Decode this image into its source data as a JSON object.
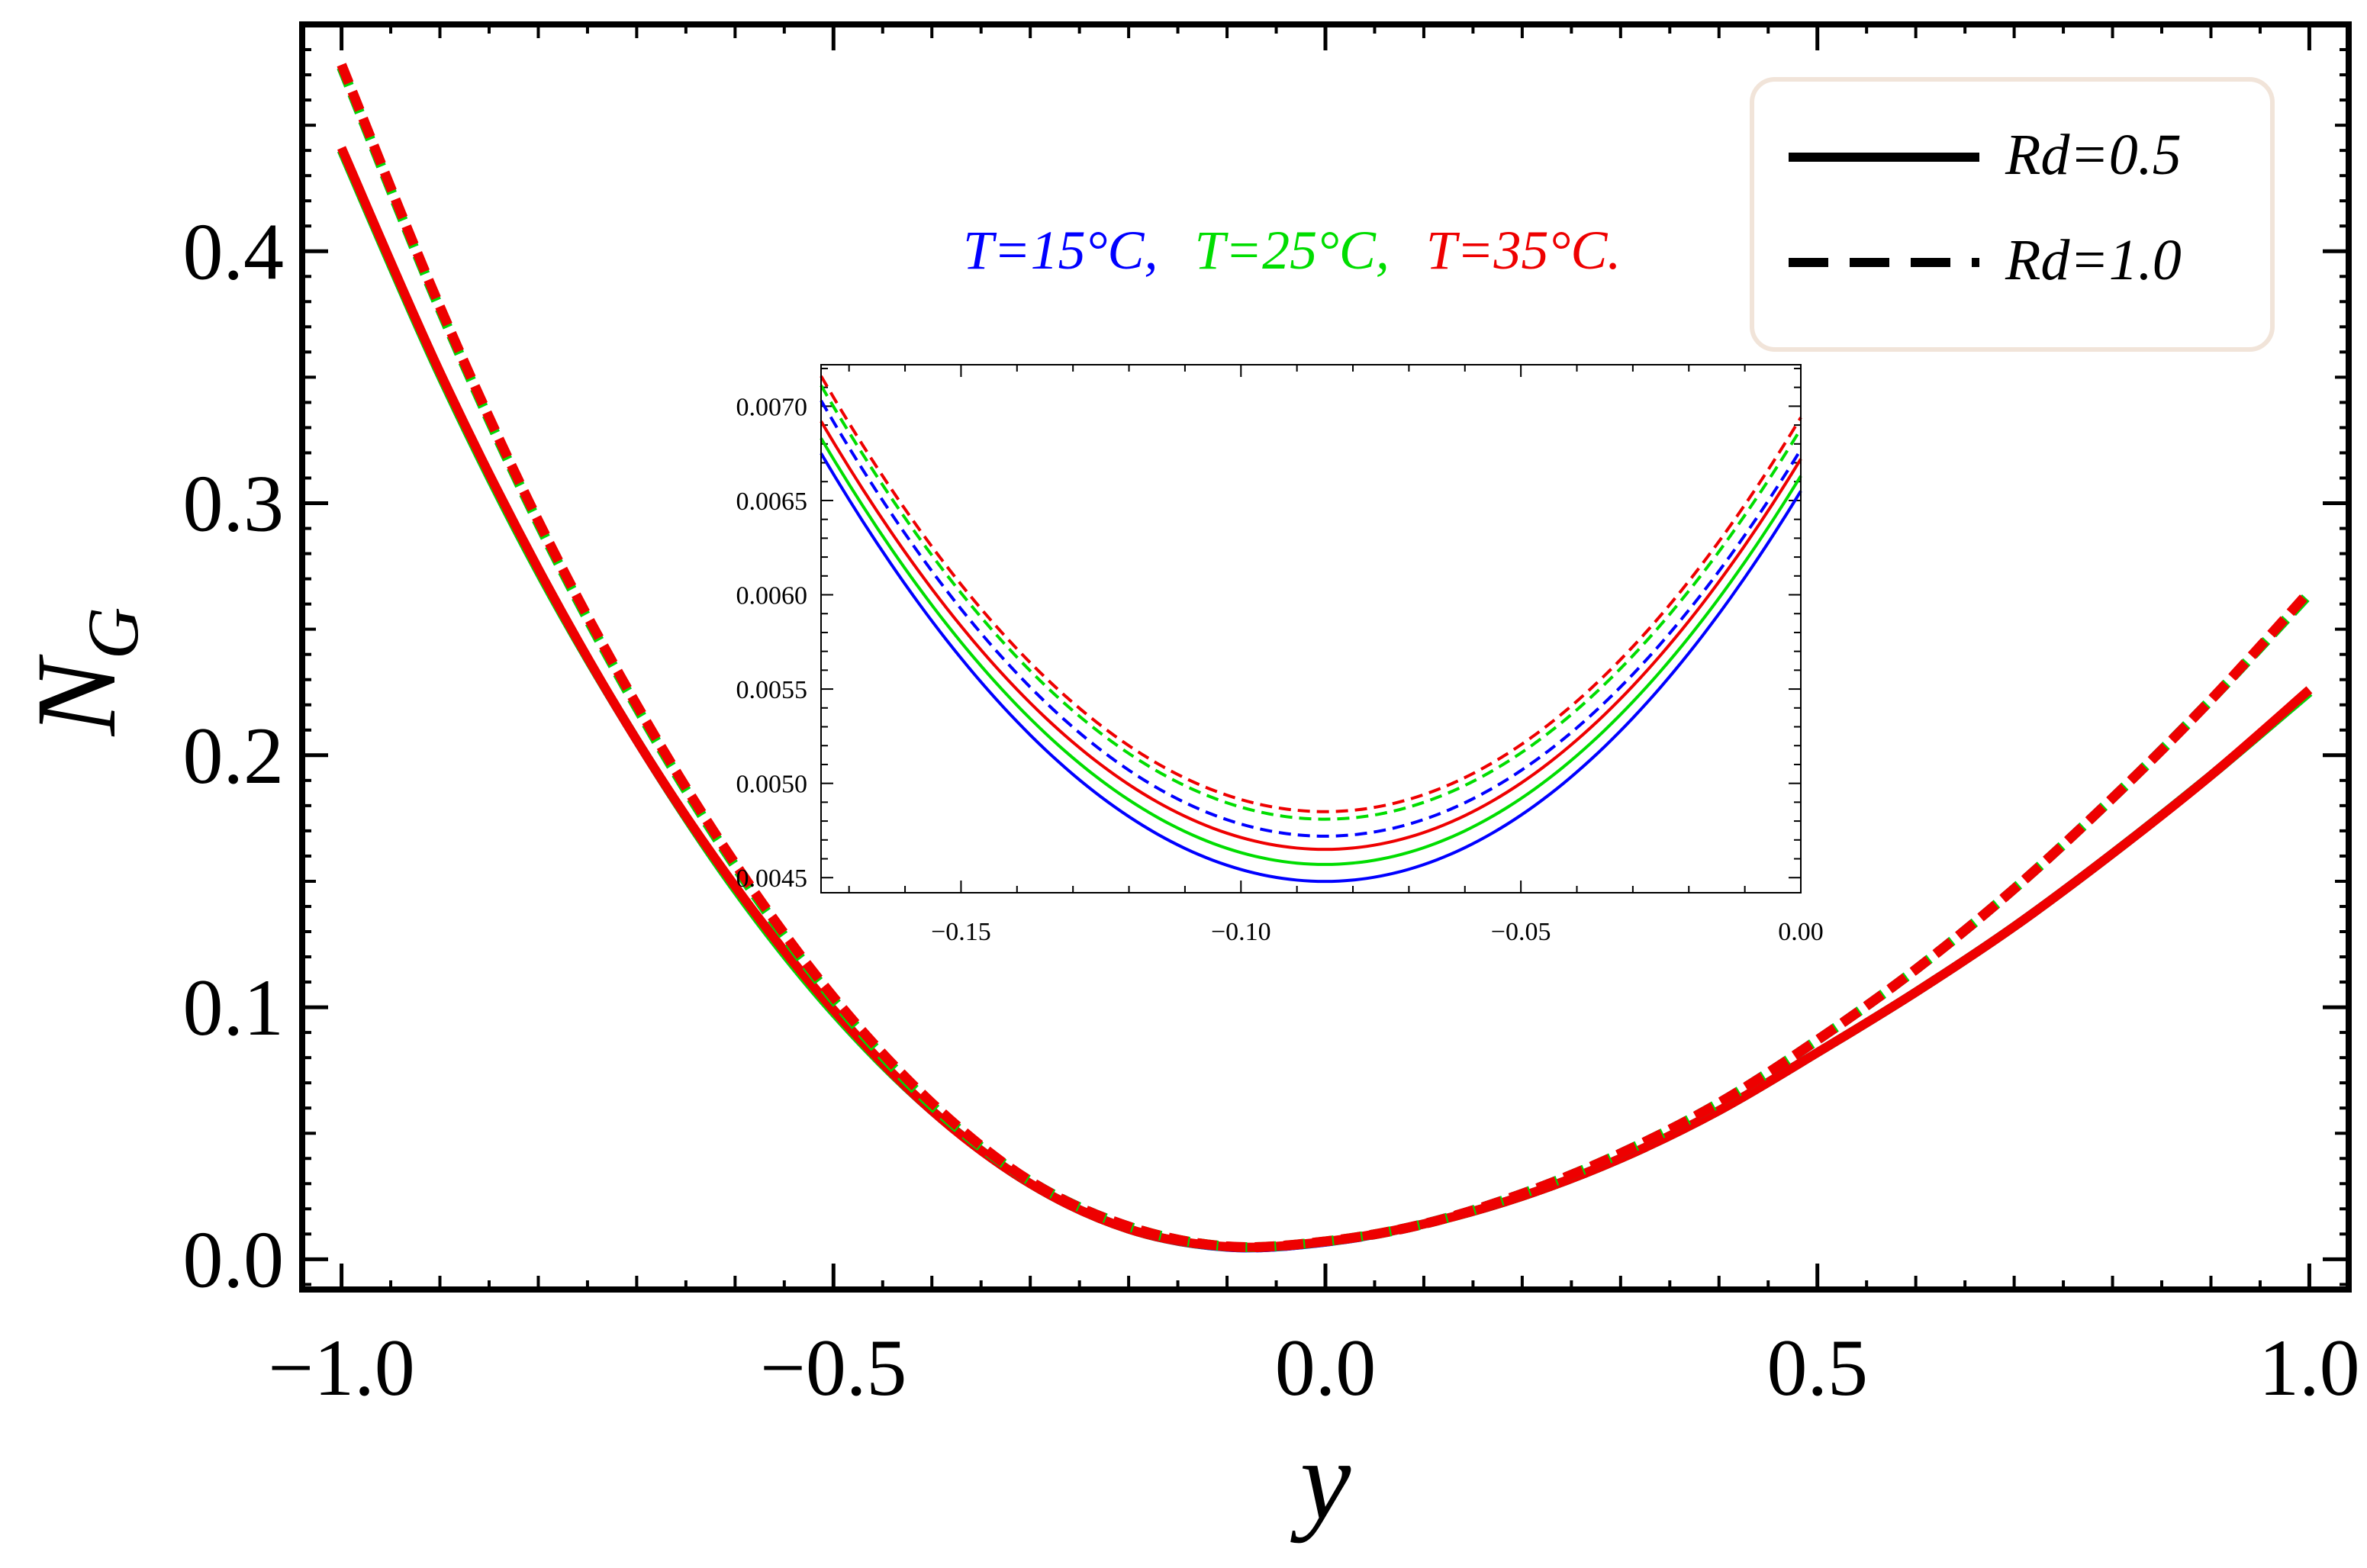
{
  "chart_data": [
    {
      "type": "line",
      "xlabel": "y",
      "ylabel": "N",
      "ylabel_sub": "G",
      "xlim": [
        -1.04,
        1.04
      ],
      "ylim": [
        -0.012,
        0.49
      ],
      "xticks": [
        -1.0,
        -0.5,
        0.0,
        0.5,
        1.0
      ],
      "xtick_labels": [
        "−1.0",
        "−0.5",
        "0.0",
        "0.5",
        "1.0"
      ],
      "yticks": [
        0.0,
        0.1,
        0.2,
        0.3,
        0.4
      ],
      "ytick_labels": [
        "0.0",
        "0.1",
        "0.2",
        "0.3",
        "0.4"
      ],
      "grid": false,
      "legend_position": "top-right",
      "legend": [
        {
          "label": "Rd=0.5",
          "style": "solid"
        },
        {
          "label": "Rd=1.0",
          "style": "dashed"
        }
      ],
      "annotation": [
        {
          "text": "T=15°C,",
          "color": "#0000ff"
        },
        {
          "text": "T=25°C,",
          "color": "#00dd00"
        },
        {
          "text": "T=35°C.",
          "color": "#ee0000"
        }
      ],
      "series": [
        {
          "name": "Rd=0.5, T=15°C",
          "color": "#0000ff",
          "style": "solid",
          "x": [
            -1.0,
            -0.9,
            -0.8,
            -0.7,
            -0.6,
            -0.5,
            -0.4,
            -0.3,
            -0.2,
            -0.1,
            0.0,
            0.1,
            0.2,
            0.3,
            0.4,
            0.5,
            0.6,
            0.7,
            0.8,
            0.9,
            1.0
          ],
          "y": [
            0.44,
            0.351,
            0.273,
            0.206,
            0.147,
            0.098,
            0.059,
            0.03,
            0.012,
            0.0048,
            0.0068,
            0.014,
            0.025,
            0.04,
            0.059,
            0.082,
            0.106,
            0.132,
            0.161,
            0.192,
            0.225
          ]
        },
        {
          "name": "Rd=0.5, T=25°C",
          "color": "#00dd00",
          "style": "solid",
          "x": [
            -1.0,
            -0.9,
            -0.8,
            -0.7,
            -0.6,
            -0.5,
            -0.4,
            -0.3,
            -0.2,
            -0.1,
            0.0,
            0.1,
            0.2,
            0.3,
            0.4,
            0.5,
            0.6,
            0.7,
            0.8,
            0.9,
            1.0
          ],
          "y": [
            0.44,
            0.351,
            0.273,
            0.206,
            0.147,
            0.098,
            0.059,
            0.03,
            0.012,
            0.0049,
            0.0069,
            0.014,
            0.025,
            0.04,
            0.059,
            0.082,
            0.106,
            0.132,
            0.161,
            0.192,
            0.225
          ]
        },
        {
          "name": "Rd=0.5, T=35°C",
          "color": "#ee0000",
          "style": "solid",
          "x": [
            -1.0,
            -0.9,
            -0.8,
            -0.7,
            -0.6,
            -0.5,
            -0.4,
            -0.3,
            -0.2,
            -0.1,
            0.0,
            0.1,
            0.2,
            0.3,
            0.4,
            0.5,
            0.6,
            0.7,
            0.8,
            0.9,
            1.0
          ],
          "y": [
            0.441,
            0.352,
            0.274,
            0.206,
            0.148,
            0.099,
            0.059,
            0.03,
            0.012,
            0.005,
            0.007,
            0.014,
            0.025,
            0.04,
            0.059,
            0.082,
            0.106,
            0.132,
            0.161,
            0.192,
            0.226
          ]
        },
        {
          "name": "Rd=1.0, T=15°C",
          "color": "#0000ff",
          "style": "dashed",
          "x": [
            -1.0,
            -0.9,
            -0.8,
            -0.7,
            -0.6,
            -0.5,
            -0.4,
            -0.3,
            -0.2,
            -0.1,
            0.0,
            0.1,
            0.2,
            0.3,
            0.4,
            0.5,
            0.6,
            0.7,
            0.8,
            0.9,
            1.0
          ],
          "y": [
            0.473,
            0.377,
            0.292,
            0.219,
            0.156,
            0.103,
            0.061,
            0.031,
            0.013,
            0.005,
            0.007,
            0.014,
            0.026,
            0.042,
            0.062,
            0.087,
            0.115,
            0.147,
            0.183,
            0.222,
            0.264
          ]
        },
        {
          "name": "Rd=1.0, T=25°C",
          "color": "#00dd00",
          "style": "dashed",
          "x": [
            -1.0,
            -0.9,
            -0.8,
            -0.7,
            -0.6,
            -0.5,
            -0.4,
            -0.3,
            -0.2,
            -0.1,
            0.0,
            0.1,
            0.2,
            0.3,
            0.4,
            0.5,
            0.6,
            0.7,
            0.8,
            0.9,
            1.0
          ],
          "y": [
            0.473,
            0.377,
            0.292,
            0.219,
            0.156,
            0.103,
            0.061,
            0.031,
            0.013,
            0.0051,
            0.0071,
            0.014,
            0.026,
            0.042,
            0.062,
            0.087,
            0.115,
            0.147,
            0.183,
            0.222,
            0.264
          ]
        },
        {
          "name": "Rd=1.0, T=35°C",
          "color": "#ee0000",
          "style": "dashed",
          "x": [
            -1.0,
            -0.9,
            -0.8,
            -0.7,
            -0.6,
            -0.5,
            -0.4,
            -0.3,
            -0.2,
            -0.1,
            0.0,
            0.1,
            0.2,
            0.3,
            0.4,
            0.5,
            0.6,
            0.7,
            0.8,
            0.9,
            1.0
          ],
          "y": [
            0.474,
            0.378,
            0.293,
            0.22,
            0.157,
            0.104,
            0.062,
            0.031,
            0.013,
            0.0051,
            0.0071,
            0.014,
            0.026,
            0.042,
            0.062,
            0.087,
            0.115,
            0.147,
            0.183,
            0.222,
            0.265
          ]
        }
      ]
    },
    {
      "type": "line",
      "role": "inset",
      "xlim": [
        -0.175,
        0.0
      ],
      "ylim": [
        0.00442,
        0.00722
      ],
      "xticks": [
        -0.15,
        -0.1,
        -0.05,
        0.0
      ],
      "xtick_labels": [
        "−0.15",
        "−0.10",
        "−0.05",
        "0.00"
      ],
      "yticks": [
        0.0045,
        0.005,
        0.0055,
        0.006,
        0.0065,
        0.007
      ],
      "ytick_labels": [
        "0.0045",
        "0.0050",
        "0.0055",
        "0.0060",
        "0.0065",
        "0.0070"
      ],
      "series": [
        {
          "name": "Rd=0.5, T=15°C",
          "color": "#0000ff",
          "style": "solid",
          "vertex_x": -0.085,
          "min": 0.00448,
          "left_end": 0.00675,
          "right_end": 0.00655
        },
        {
          "name": "Rd=0.5, T=25°C",
          "color": "#00dd00",
          "style": "solid",
          "vertex_x": -0.085,
          "min": 0.00457,
          "left_end": 0.00683,
          "right_end": 0.00663
        },
        {
          "name": "Rd=0.5, T=35°C",
          "color": "#ee0000",
          "style": "solid",
          "vertex_x": -0.085,
          "min": 0.00465,
          "left_end": 0.00692,
          "right_end": 0.00672
        },
        {
          "name": "Rd=1.0, T=15°C",
          "color": "#0000ff",
          "style": "dashed",
          "vertex_x": -0.085,
          "min": 0.00472,
          "left_end": 0.00703,
          "right_end": 0.00677
        },
        {
          "name": "Rd=1.0, T=25°C",
          "color": "#00dd00",
          "style": "dashed",
          "vertex_x": -0.085,
          "min": 0.00481,
          "left_end": 0.00711,
          "right_end": 0.00688
        },
        {
          "name": "Rd=1.0, T=35°C",
          "color": "#ee0000",
          "style": "dashed",
          "vertex_x": -0.085,
          "min": 0.00485,
          "left_end": 0.00716,
          "right_end": 0.00694
        }
      ]
    }
  ]
}
